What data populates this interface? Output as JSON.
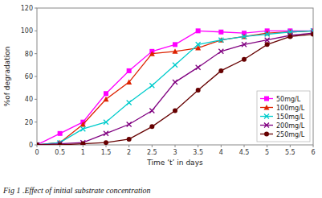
{
  "chart_data": {
    "type": "line",
    "title": "Fig 1 .Effect of initial substrate concentration",
    "xlabel": "Time ‘t’ in days",
    "ylabel": "%of degradation",
    "x": [
      0,
      0.5,
      1,
      1.5,
      2,
      2.5,
      3,
      3.5,
      4,
      4.5,
      5,
      5.5,
      6
    ],
    "series": [
      {
        "name": "50mg/L",
        "color": "#ff00ff",
        "marker": "square",
        "values": [
          0,
          10,
          20,
          45,
          65,
          82,
          88,
          100,
          99,
          98,
          100,
          100,
          100
        ]
      },
      {
        "name": "100mg/L",
        "color": "#dd2200",
        "marker": "triangle",
        "values": [
          0,
          2,
          18,
          40,
          55,
          80,
          82,
          85,
          92,
          95,
          98,
          99,
          100
        ]
      },
      {
        "name": "150mg/L",
        "color": "#00cccc",
        "marker": "x",
        "values": [
          0,
          2,
          14,
          20,
          37,
          52,
          70,
          88,
          92,
          95,
          97,
          99,
          100
        ]
      },
      {
        "name": "200mg/L",
        "color": "#800080",
        "marker": "x",
        "values": [
          0,
          1,
          2,
          10,
          18,
          30,
          55,
          68,
          82,
          88,
          92,
          96,
          98
        ]
      },
      {
        "name": "250mg/L",
        "color": "#660000",
        "marker": "circle",
        "values": [
          0,
          0,
          1,
          2,
          5,
          16,
          30,
          48,
          65,
          75,
          88,
          95,
          97
        ]
      }
    ],
    "xlim": [
      0,
      6
    ],
    "ylim": [
      0,
      120
    ],
    "xticks": [
      0,
      0.5,
      1,
      1.5,
      2,
      2.5,
      3,
      3.5,
      4,
      4.5,
      5,
      5.5,
      6
    ],
    "yticks": [
      0,
      20,
      40,
      60,
      80,
      100,
      120
    ],
    "grid": false,
    "legend": "lower right"
  }
}
